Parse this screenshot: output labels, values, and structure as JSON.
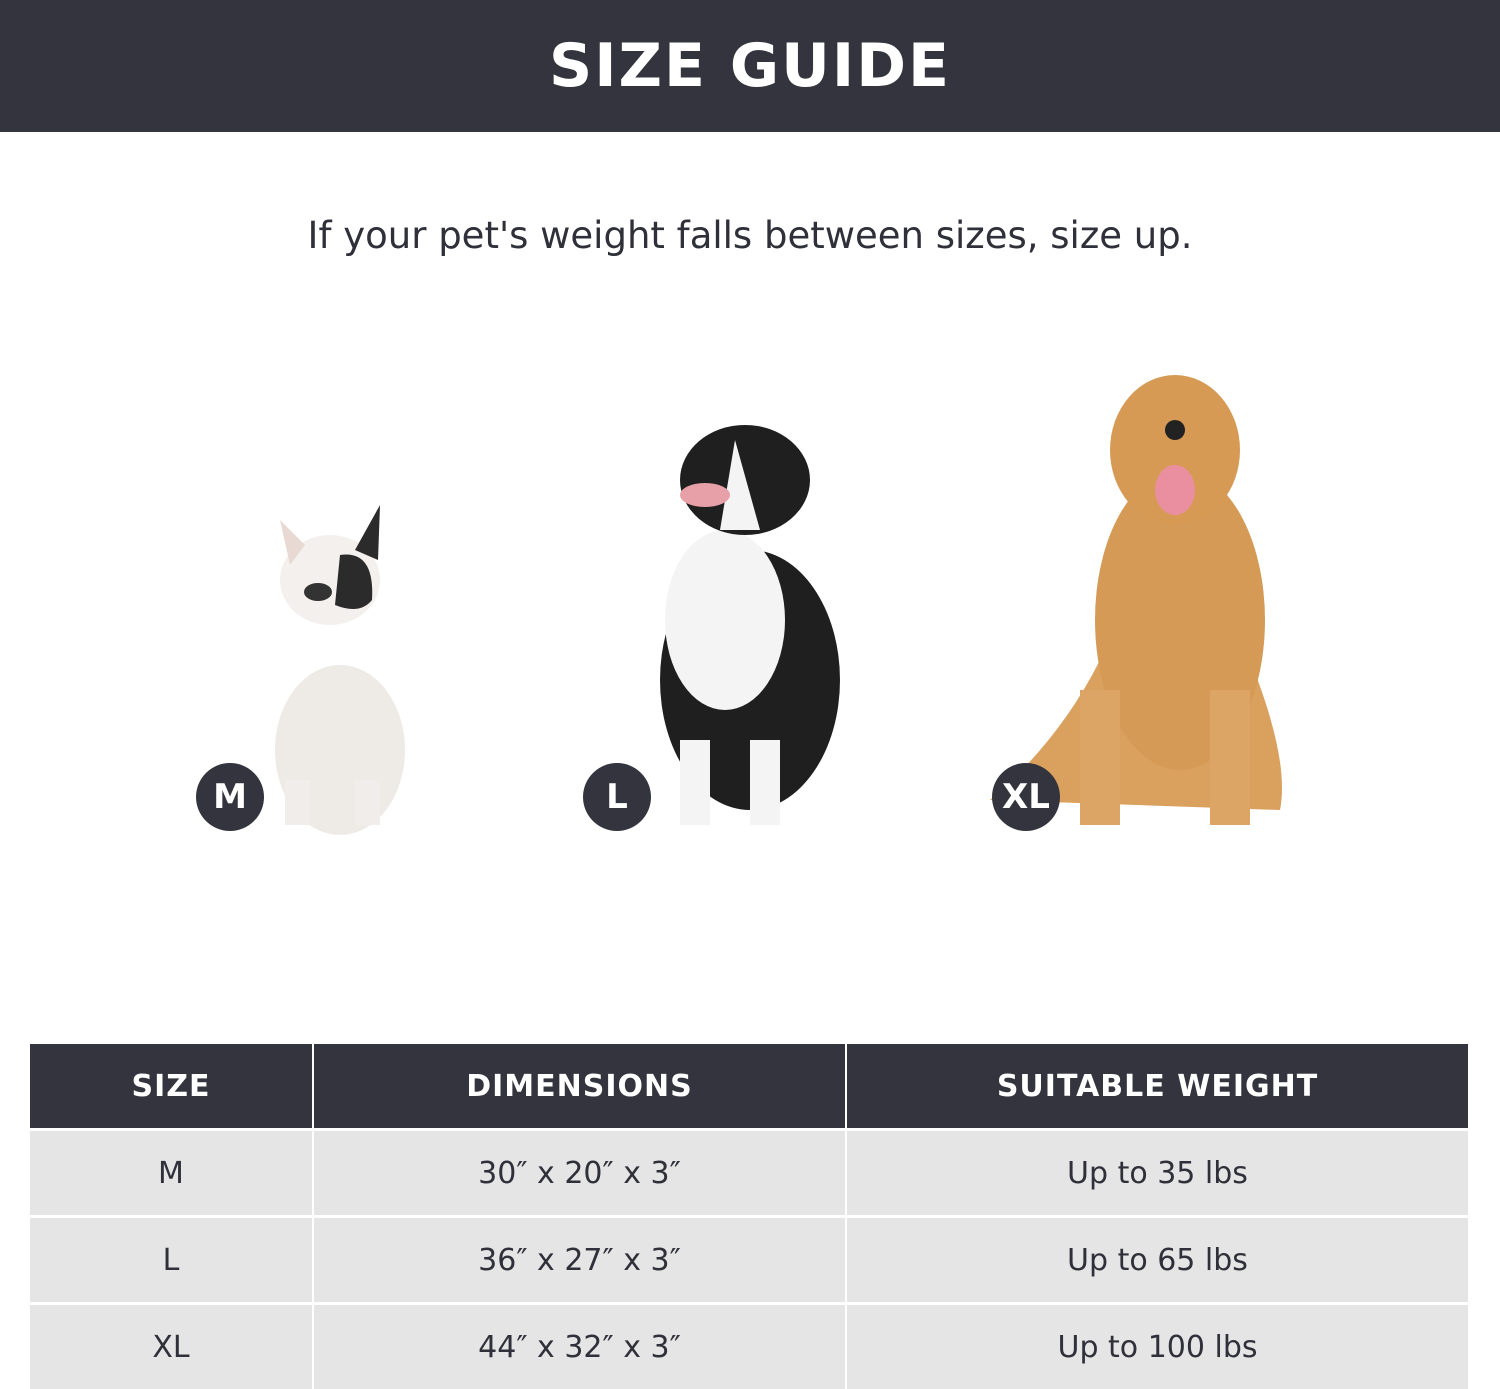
{
  "header": {
    "title": "SIZE GUIDE"
  },
  "subtitle": "If your pet's weight falls between sizes, size up.",
  "dogs": [
    {
      "badge": "M",
      "breed_icon": "french-bulldog"
    },
    {
      "badge": "L",
      "breed_icon": "border-collie"
    },
    {
      "badge": "XL",
      "breed_icon": "golden-retriever"
    }
  ],
  "table": {
    "headers": [
      "SIZE",
      "DIMENSIONS",
      "SUITABLE WEIGHT"
    ],
    "rows": [
      [
        "M",
        "30″ x 20″ x 3″",
        "Up to 35 lbs"
      ],
      [
        "L",
        "36″ x 27″ x 3″",
        "Up to 65 lbs"
      ],
      [
        "XL",
        "44″ x 32″ x 3″",
        "Up to 100 lbs"
      ]
    ]
  },
  "colors": {
    "dark": "#33343d",
    "row": "#e5e5e5",
    "text": "#2f3039"
  }
}
